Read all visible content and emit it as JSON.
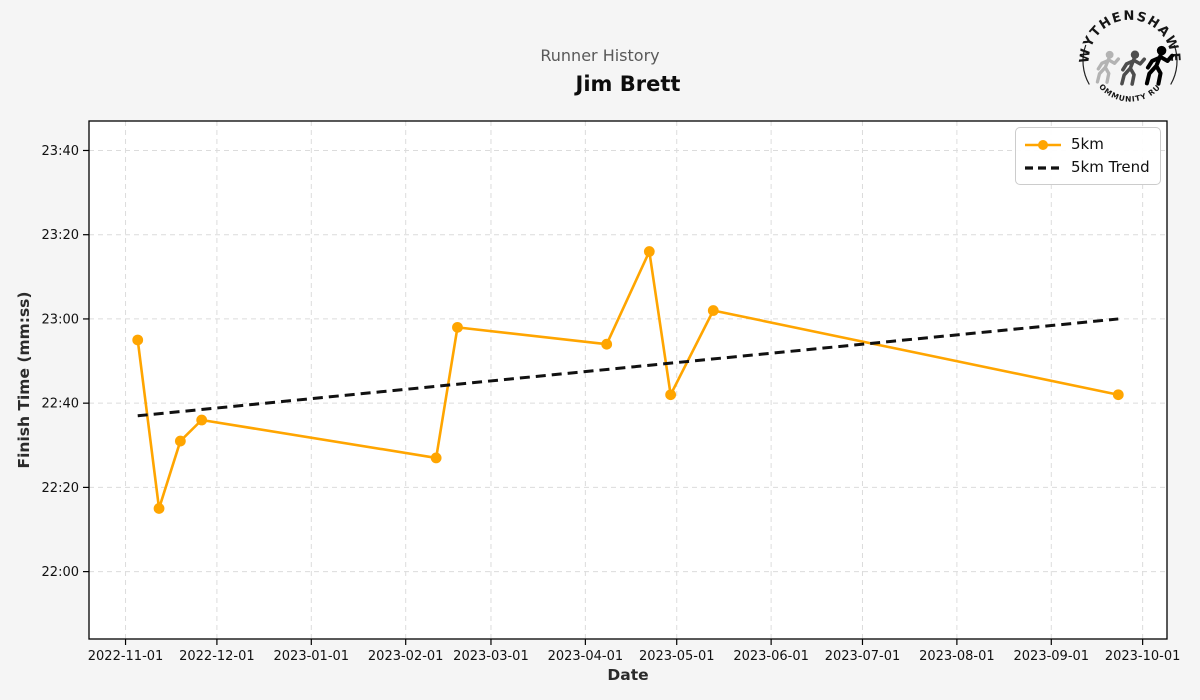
{
  "page": {
    "background": "#f5f5f5",
    "plot_background": "#ffffff"
  },
  "logo": {
    "top_text": "WYTHENSHAWE",
    "bottom_text": "COMMUNITY RUN",
    "runner_colors": [
      "#b3b3b3",
      "#4d4d4d",
      "#000000"
    ]
  },
  "colors": {
    "accent_orange": "#FFA500",
    "trend_black": "#111111",
    "grid": "#dcdcdc",
    "spine": "#000000",
    "suptitle_gray": "#595959"
  },
  "chart_data": {
    "type": "line",
    "suptitle": "Runner History",
    "title": "Jim Brett",
    "xlabel": "Date",
    "ylabel": "Finish Time (mm:ss)",
    "grid": true,
    "legend": {
      "position": "upper right",
      "labels": [
        "5km",
        "5km Trend"
      ]
    },
    "x_axis": {
      "min_date": "2022-10-20",
      "max_date": "2023-10-09",
      "tick_dates": [
        "2022-11-01",
        "2022-12-01",
        "2023-01-01",
        "2023-02-01",
        "2023-03-01",
        "2023-04-01",
        "2023-05-01",
        "2023-06-01",
        "2023-07-01",
        "2023-08-01",
        "2023-09-01",
        "2023-10-01"
      ]
    },
    "y_axis": {
      "min": "21:44",
      "max": "23:47",
      "tick_times": [
        "22:00",
        "22:20",
        "22:40",
        "23:00",
        "23:20",
        "23:40"
      ]
    },
    "series": [
      {
        "name": "5km",
        "color": "#FFA500",
        "style": "solid",
        "marker": "circle",
        "points": [
          {
            "date": "2022-11-05",
            "time": "22:55"
          },
          {
            "date": "2022-11-12",
            "time": "22:15"
          },
          {
            "date": "2022-11-19",
            "time": "22:31"
          },
          {
            "date": "2022-11-26",
            "time": "22:36"
          },
          {
            "date": "2023-02-11",
            "time": "22:27"
          },
          {
            "date": "2023-02-18",
            "time": "22:58"
          },
          {
            "date": "2023-04-08",
            "time": "22:54"
          },
          {
            "date": "2023-04-22",
            "time": "23:16"
          },
          {
            "date": "2023-04-29",
            "time": "22:42"
          },
          {
            "date": "2023-05-13",
            "time": "23:02"
          },
          {
            "date": "2023-09-23",
            "time": "22:42"
          }
        ]
      },
      {
        "name": "5km Trend",
        "color": "#111111",
        "style": "dashed",
        "marker": "none",
        "points": [
          {
            "date": "2022-11-05",
            "time": "22:37"
          },
          {
            "date": "2023-09-23",
            "time": "23:00"
          }
        ]
      }
    ]
  }
}
